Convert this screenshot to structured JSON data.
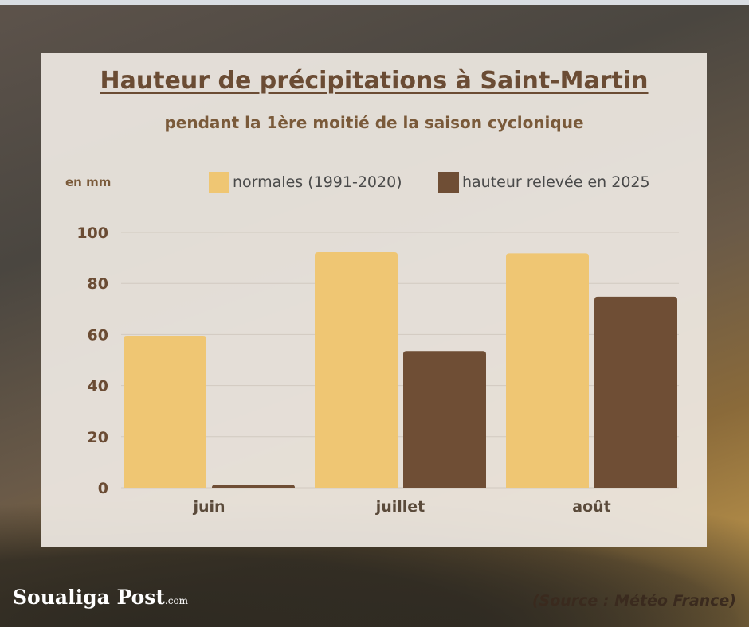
{
  "chart_data": {
    "type": "bar",
    "title": "Hauteur de précipitations à Saint-Martin",
    "subtitle": "pendant la 1ère moitié de la saison cyclonique",
    "ylabel": "en mm",
    "categories": [
      "juin",
      "juillet",
      "août"
    ],
    "series": [
      {
        "name": "normales (1991-2020)",
        "values": [
          59.5,
          92.2,
          91.8
        ],
        "color": "#efc673"
      },
      {
        "name": "hauteur relevée en 2025",
        "values": [
          1.2,
          53.5,
          74.8
        ],
        "color": "#6f4e35"
      }
    ],
    "yticks": [
      0,
      20,
      40,
      60,
      80,
      100
    ],
    "ylim": [
      0,
      100
    ],
    "grid": true,
    "legend_position": "top"
  },
  "branding": {
    "name": "Soualiga Post",
    "suffix": ".com"
  },
  "source": "(Source :  Météo France)"
}
